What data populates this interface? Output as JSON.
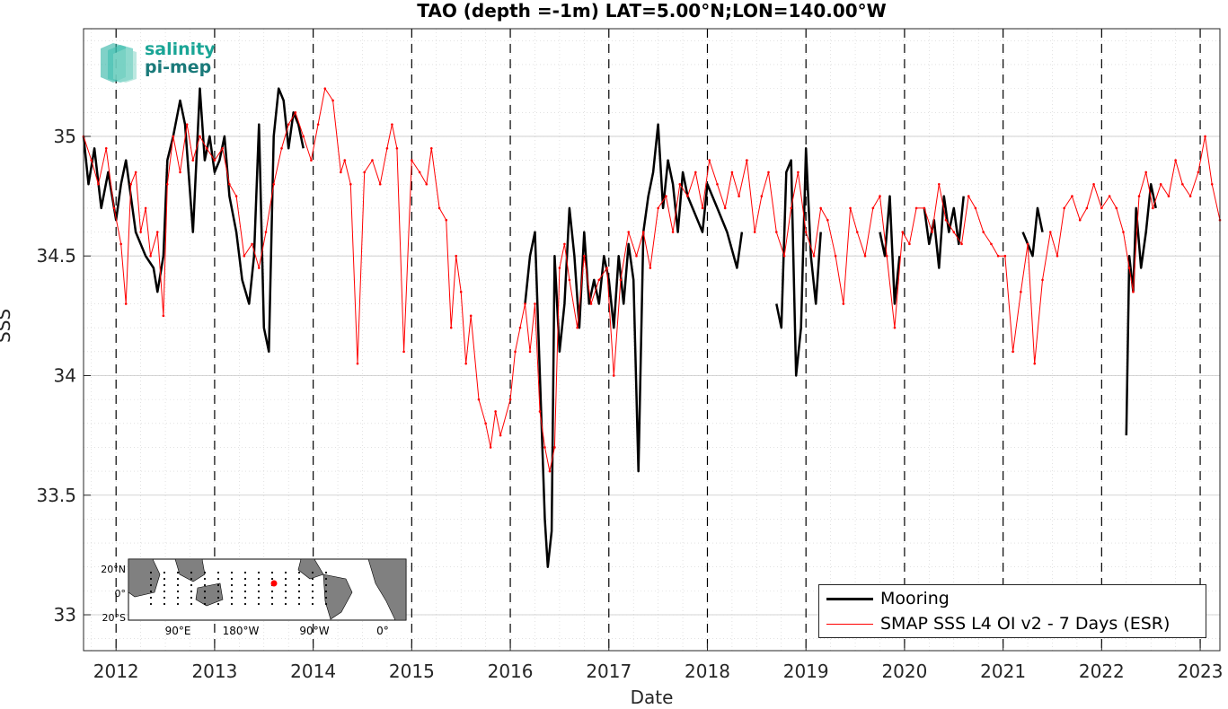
{
  "chart_data": {
    "type": "line",
    "title": "TAO (depth =-1m) LAT=5.00°N;LON=140.00°W",
    "xlabel": "Date",
    "ylabel": "SSS",
    "xlim": [
      2011.67,
      2023.2
    ],
    "ylim": [
      32.85,
      35.45
    ],
    "x_ticks": [
      "2012",
      "2013",
      "2014",
      "2015",
      "2016",
      "2017",
      "2018",
      "2019",
      "2020",
      "2021",
      "2022",
      "2023"
    ],
    "y_ticks": [
      "33",
      "33.5",
      "34",
      "34.5",
      "35"
    ],
    "grid": true,
    "year_markers": "dashed vertical lines at each Jan 1",
    "legend_placement": "bottom-right",
    "series": [
      {
        "name": "Mooring",
        "color": "#000000",
        "x": [
          2011.67,
          2011.72,
          2011.78,
          2011.85,
          2011.92,
          2012.0,
          2012.05,
          2012.1,
          2012.2,
          2012.3,
          2012.38,
          2012.42,
          2012.48,
          2012.52,
          2012.58,
          2012.65,
          2012.7,
          2012.78,
          2012.85,
          2012.9,
          2012.95,
          2013.0,
          2013.05,
          2013.1,
          2013.15,
          2013.22,
          2013.28,
          2013.35,
          2013.4,
          2013.45,
          2013.5,
          2013.55,
          2013.6,
          2013.65,
          2013.7,
          2013.75,
          2013.8,
          2013.85,
          2013.9,
          null,
          2016.15,
          2016.2,
          2016.25,
          2016.3,
          2016.35,
          2016.38,
          2016.42,
          2016.45,
          2016.5,
          2016.55,
          2016.6,
          2016.65,
          2016.7,
          2016.75,
          2016.8,
          2016.85,
          2016.9,
          2016.95,
          2017.0,
          2017.05,
          2017.1,
          2017.15,
          2017.2,
          2017.25,
          2017.3,
          2017.35,
          2017.4,
          2017.45,
          2017.5,
          2017.55,
          2017.6,
          2017.65,
          2017.7,
          2017.75,
          2017.8,
          2017.85,
          2017.9,
          2017.95,
          2018.0,
          2018.1,
          2018.2,
          2018.3,
          2018.35,
          null,
          2018.7,
          2018.75,
          2018.8,
          2018.85,
          2018.9,
          2018.95,
          2019.0,
          2019.05,
          2019.1,
          2019.15,
          null,
          2019.75,
          2019.8,
          2019.85,
          2019.9,
          2019.95,
          null,
          2020.2,
          2020.25,
          2020.3,
          2020.35,
          2020.4,
          2020.45,
          2020.5,
          2020.55,
          2020.6,
          null,
          2021.2,
          2021.25,
          2021.3,
          2021.35,
          2021.4,
          null,
          2022.25,
          2022.28,
          2022.32,
          2022.35,
          2022.4,
          2022.45,
          2022.5,
          2022.55
        ],
        "y": [
          35.0,
          34.8,
          34.95,
          34.7,
          34.85,
          34.65,
          34.8,
          34.9,
          34.6,
          34.5,
          34.45,
          34.35,
          34.5,
          34.9,
          35.0,
          35.15,
          35.05,
          34.6,
          35.2,
          34.9,
          35.0,
          34.85,
          34.9,
          35.0,
          34.75,
          34.6,
          34.4,
          34.3,
          34.5,
          35.05,
          34.2,
          34.1,
          35.0,
          35.2,
          35.15,
          34.95,
          35.1,
          35.05,
          34.95,
          null,
          34.3,
          34.5,
          34.6,
          34.0,
          33.4,
          33.2,
          33.35,
          34.5,
          34.1,
          34.3,
          34.7,
          34.5,
          34.2,
          34.6,
          34.3,
          34.4,
          34.3,
          34.5,
          34.4,
          34.2,
          34.5,
          34.3,
          34.55,
          34.4,
          33.6,
          34.6,
          34.75,
          34.85,
          35.05,
          34.7,
          34.9,
          34.8,
          34.6,
          34.85,
          34.75,
          34.7,
          34.65,
          34.6,
          34.8,
          34.7,
          34.6,
          34.45,
          34.6,
          null,
          34.3,
          34.2,
          34.85,
          34.9,
          34.0,
          34.2,
          34.95,
          34.5,
          34.3,
          34.6,
          null,
          34.6,
          34.5,
          34.75,
          34.3,
          34.5,
          null,
          34.7,
          34.55,
          34.65,
          34.45,
          34.75,
          34.6,
          34.7,
          34.55,
          34.75,
          null,
          34.6,
          34.55,
          34.5,
          34.7,
          34.6,
          null,
          33.75,
          34.5,
          34.35,
          34.7,
          34.45,
          34.6,
          34.8,
          34.7
        ]
      },
      {
        "name": "SMAP SSS L4 OI v2 - 7 Days (ESR)",
        "color": "#ff0000",
        "x": [
          2011.67,
          2011.75,
          2011.82,
          2011.9,
          2011.98,
          2012.05,
          2012.1,
          2012.15,
          2012.2,
          2012.25,
          2012.3,
          2012.35,
          2012.42,
          2012.48,
          2012.52,
          2012.58,
          2012.65,
          2012.72,
          2012.78,
          2012.85,
          2012.92,
          2013.0,
          2013.08,
          2013.15,
          2013.22,
          2013.3,
          2013.38,
          2013.45,
          2013.52,
          2013.6,
          2013.68,
          2013.75,
          2013.82,
          2013.9,
          2013.98,
          2014.05,
          2014.12,
          2014.2,
          2014.28,
          2014.32,
          2014.38,
          2014.45,
          2014.52,
          2014.6,
          2014.68,
          2014.75,
          2014.8,
          2014.85,
          2014.92,
          2015.0,
          2015.08,
          2015.15,
          2015.2,
          2015.28,
          2015.35,
          2015.4,
          2015.45,
          2015.5,
          2015.55,
          2015.6,
          2015.68,
          2015.75,
          2015.8,
          2015.85,
          2015.9,
          2016.0,
          2016.05,
          2016.1,
          2016.15,
          2016.2,
          2016.25,
          2016.3,
          2016.35,
          2016.4,
          2016.45,
          2016.5,
          2016.55,
          2016.6,
          2016.68,
          2016.75,
          2016.82,
          2016.9,
          2016.98,
          2017.05,
          2017.12,
          2017.2,
          2017.28,
          2017.35,
          2017.42,
          2017.5,
          2017.58,
          2017.65,
          2017.72,
          2017.8,
          2017.88,
          2017.95,
          2018.02,
          2018.1,
          2018.18,
          2018.25,
          2018.32,
          2018.4,
          2018.48,
          2018.55,
          2018.62,
          2018.7,
          2018.78,
          2018.85,
          2018.92,
          2019.0,
          2019.08,
          2019.15,
          2019.22,
          2019.3,
          2019.38,
          2019.45,
          2019.52,
          2019.6,
          2019.68,
          2019.75,
          2019.82,
          2019.9,
          2019.98,
          2020.05,
          2020.12,
          2020.2,
          2020.28,
          2020.35,
          2020.42,
          2020.5,
          2020.58,
          2020.65,
          2020.72,
          2020.8,
          2020.88,
          2020.95,
          2021.02,
          2021.1,
          2021.18,
          2021.25,
          2021.32,
          2021.4,
          2021.48,
          2021.55,
          2021.62,
          2021.7,
          2021.78,
          2021.85,
          2021.92,
          2022.0,
          2022.08,
          2022.15,
          2022.22,
          2022.28,
          2022.32,
          2022.38,
          2022.45,
          2022.52,
          2022.6,
          2022.68,
          2022.75,
          2022.82,
          2022.9,
          2022.98,
          2023.05,
          2023.12,
          2023.2
        ],
        "y": [
          35.0,
          34.9,
          34.8,
          34.95,
          34.7,
          34.55,
          34.3,
          34.8,
          34.85,
          34.6,
          34.7,
          34.5,
          34.6,
          34.25,
          34.8,
          35.0,
          34.85,
          35.05,
          34.9,
          35.0,
          34.95,
          34.9,
          34.95,
          34.8,
          34.75,
          34.5,
          34.55,
          34.45,
          34.6,
          34.8,
          34.95,
          35.05,
          35.1,
          35.0,
          34.9,
          35.05,
          35.2,
          35.15,
          34.85,
          34.9,
          34.8,
          34.05,
          34.85,
          34.9,
          34.8,
          34.95,
          35.05,
          34.95,
          34.1,
          34.9,
          34.85,
          34.8,
          34.95,
          34.7,
          34.65,
          34.2,
          34.5,
          34.35,
          34.05,
          34.25,
          33.9,
          33.8,
          33.7,
          33.85,
          33.75,
          33.9,
          34.1,
          34.2,
          34.3,
          34.1,
          34.3,
          33.85,
          33.7,
          33.6,
          33.7,
          34.45,
          34.55,
          34.4,
          34.2,
          34.5,
          34.3,
          34.4,
          34.45,
          34.0,
          34.4,
          34.6,
          34.5,
          34.6,
          34.45,
          34.7,
          34.75,
          34.6,
          34.8,
          34.75,
          34.85,
          34.7,
          34.9,
          34.8,
          34.7,
          34.85,
          34.75,
          34.9,
          34.6,
          34.75,
          34.85,
          34.6,
          34.5,
          34.7,
          34.85,
          34.6,
          34.5,
          34.7,
          34.65,
          34.5,
          34.3,
          34.7,
          34.6,
          34.5,
          34.7,
          34.75,
          34.5,
          34.2,
          34.6,
          34.55,
          34.7,
          34.7,
          34.6,
          34.8,
          34.65,
          34.6,
          34.55,
          34.75,
          34.7,
          34.6,
          34.55,
          34.5,
          34.5,
          34.1,
          34.35,
          34.55,
          34.05,
          34.4,
          34.6,
          34.5,
          34.7,
          34.75,
          34.65,
          34.7,
          34.8,
          34.7,
          34.75,
          34.7,
          34.6,
          34.45,
          34.35,
          34.75,
          34.85,
          34.7,
          34.8,
          34.75,
          34.9,
          34.8,
          34.75,
          34.85,
          35.0,
          34.8,
          34.65
        ]
      }
    ]
  },
  "logo": {
    "line1": "salinity",
    "line2": "pi-mep"
  },
  "inset_map": {
    "lat_labels": [
      "20°N",
      "0°",
      "20°S"
    ],
    "lon_labels": [
      "90°E",
      "180°W",
      "90°W",
      "0°"
    ],
    "land_color": "#808080",
    "marker_color": "#ff0000"
  }
}
